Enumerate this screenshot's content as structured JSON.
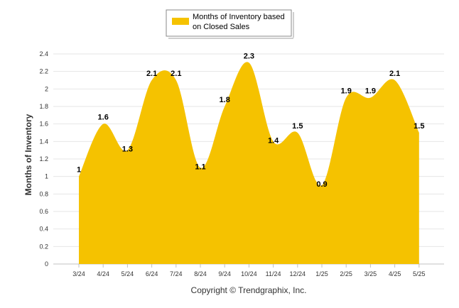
{
  "chart_data": {
    "type": "area",
    "categories": [
      "3/24",
      "4/24",
      "5/24",
      "6/24",
      "7/24",
      "8/24",
      "9/24",
      "10/24",
      "11/24",
      "12/24",
      "1/25",
      "2/25",
      "3/25",
      "4/25",
      "5/25"
    ],
    "series": [
      {
        "name": "Months of Inventory based on Closed Sales",
        "values": [
          1,
          1.6,
          1.3,
          2.1,
          2.1,
          1.1,
          1.8,
          2.3,
          1.4,
          1.5,
          0.9,
          1.9,
          1.9,
          2.1,
          1.5
        ],
        "data_labels": [
          "1",
          "1.6",
          "1.3",
          "2.1",
          "2.1",
          "1.1",
          "1.8",
          "2.3",
          "1.4",
          "1.5",
          "0.9",
          "1.9",
          "1.9",
          "2.1",
          "1.5"
        ],
        "color": "#F5C200"
      }
    ],
    "ylabel": "Months of Inventory",
    "ylim": [
      0,
      2.4
    ],
    "yticks": [
      "0",
      "0.2",
      "0.4",
      "0.6",
      "0.8",
      "1",
      "1.2",
      "1.4",
      "1.6",
      "1.8",
      "2",
      "2.2",
      "2.4"
    ],
    "grid": true,
    "legend_position": "top-center",
    "legend_lines": [
      "Months of Inventory based",
      "on Closed Sales"
    ],
    "footer": "Copyright © Trendgraphix, Inc."
  }
}
